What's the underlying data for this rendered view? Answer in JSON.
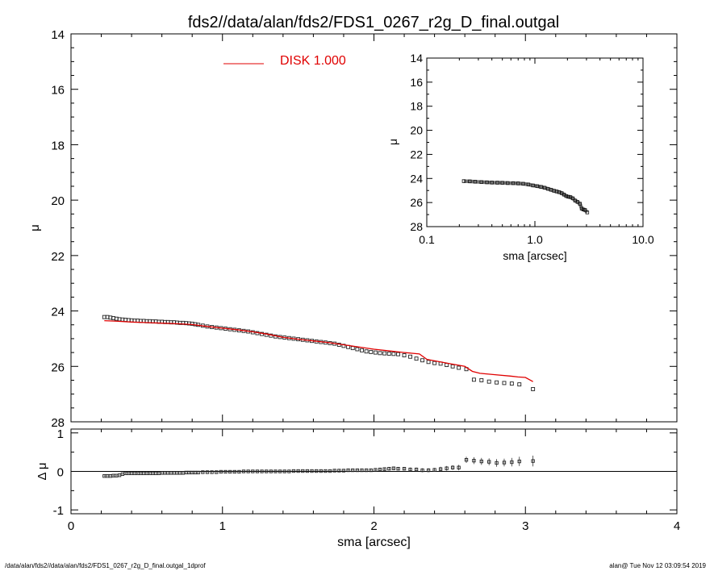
{
  "footer": {
    "left": "/data/alan/fds2//data/alan/fds2/FDS1_0267_r2g_D_final.outgal_1dprof",
    "right": "alan@  Tue Nov 12 03:09:54 2019"
  },
  "chart_data": [
    {
      "type": "scatter",
      "title": "fds2//data/alan/fds2/FDS1_0267_r2g_D_final.outgal",
      "xlabel": "",
      "ylabel": "μ",
      "xlim": [
        0,
        4
      ],
      "ylim": [
        28,
        14
      ],
      "yticks": [
        "14",
        "16",
        "18",
        "20",
        "22",
        "24",
        "26",
        "28"
      ],
      "legend": {
        "label": "DISK  1.000",
        "color": "#e00000",
        "placement": "top-center"
      },
      "series": [
        {
          "kind": "points",
          "color": "#000000",
          "x": [
            0.22,
            0.24,
            0.26,
            0.28,
            0.3,
            0.32,
            0.34,
            0.36,
            0.38,
            0.4,
            0.42,
            0.44,
            0.46,
            0.48,
            0.5,
            0.52,
            0.54,
            0.56,
            0.58,
            0.6,
            0.62,
            0.64,
            0.66,
            0.68,
            0.7,
            0.72,
            0.74,
            0.76,
            0.78,
            0.8,
            0.82,
            0.84,
            0.87,
            0.9,
            0.93,
            0.96,
            0.99,
            1.02,
            1.05,
            1.08,
            1.11,
            1.14,
            1.17,
            1.2,
            1.23,
            1.26,
            1.29,
            1.32,
            1.35,
            1.38,
            1.41,
            1.44,
            1.47,
            1.5,
            1.53,
            1.56,
            1.59,
            1.62,
            1.65,
            1.68,
            1.71,
            1.74,
            1.77,
            1.8,
            1.83,
            1.86,
            1.89,
            1.92,
            1.95,
            1.98,
            2.01,
            2.04,
            2.07,
            2.1,
            2.13,
            2.16,
            2.2,
            2.24,
            2.28,
            2.32,
            2.36,
            2.4,
            2.44,
            2.48,
            2.52,
            2.56,
            2.61,
            2.66,
            2.71,
            2.76,
            2.81,
            2.86,
            2.91,
            2.96,
            3.05
          ],
          "y": [
            24.22,
            24.22,
            24.24,
            24.26,
            24.28,
            24.3,
            24.31,
            24.32,
            24.33,
            24.34,
            24.35,
            24.35,
            24.36,
            24.36,
            24.37,
            24.37,
            24.38,
            24.38,
            24.39,
            24.39,
            24.4,
            24.4,
            24.41,
            24.41,
            24.42,
            24.43,
            24.43,
            24.44,
            24.45,
            24.46,
            24.48,
            24.5,
            24.53,
            24.56,
            24.58,
            24.6,
            24.62,
            24.64,
            24.66,
            24.68,
            24.7,
            24.72,
            24.74,
            24.77,
            24.8,
            24.83,
            24.86,
            24.89,
            24.92,
            24.94,
            24.96,
            24.98,
            25.0,
            25.02,
            25.04,
            25.06,
            25.08,
            25.1,
            25.12,
            25.14,
            25.16,
            25.18,
            25.22,
            25.26,
            25.3,
            25.34,
            25.38,
            25.42,
            25.46,
            25.48,
            25.5,
            25.52,
            25.53,
            25.54,
            25.55,
            25.56,
            25.6,
            25.65,
            25.72,
            25.78,
            25.84,
            25.88,
            25.9,
            25.95,
            26.0,
            26.05,
            26.1,
            26.48,
            26.5,
            26.55,
            26.58,
            26.6,
            26.62,
            26.65,
            26.82
          ]
        },
        {
          "kind": "line",
          "name": "DISK  1.000",
          "color": "#e00000",
          "x": [
            0.22,
            0.3,
            0.4,
            0.5,
            0.6,
            0.7,
            0.8,
            0.9,
            1.0,
            1.1,
            1.2,
            1.3,
            1.4,
            1.5,
            1.6,
            1.7,
            1.8,
            1.9,
            2.0,
            2.1,
            2.2,
            2.3,
            2.35,
            2.4,
            2.5,
            2.6,
            2.65,
            2.7,
            2.8,
            2.9,
            2.95,
            3.0,
            3.05
          ],
          "y": [
            24.35,
            24.37,
            24.4,
            24.42,
            24.44,
            24.46,
            24.49,
            24.56,
            24.62,
            24.68,
            24.75,
            24.84,
            24.95,
            25.02,
            25.08,
            25.14,
            25.22,
            25.3,
            25.38,
            25.44,
            25.5,
            25.55,
            25.75,
            25.8,
            25.9,
            26.0,
            26.18,
            26.25,
            26.3,
            26.35,
            26.38,
            26.4,
            26.55
          ]
        }
      ]
    },
    {
      "type": "scatter",
      "title": "",
      "xlabel": "sma [arcsec]",
      "ylabel": "Δ μ",
      "xlim": [
        0,
        4
      ],
      "ylim": [
        -1.1,
        1.1
      ],
      "xticks": [
        "0",
        "1",
        "2",
        "3",
        "4"
      ],
      "yticks": [
        "1",
        "0",
        "-1"
      ],
      "series": [
        {
          "kind": "points_with_errorbars",
          "color": "#000000",
          "x": [
            0.22,
            0.24,
            0.26,
            0.28,
            0.3,
            0.32,
            0.34,
            0.36,
            0.38,
            0.4,
            0.42,
            0.44,
            0.46,
            0.48,
            0.5,
            0.52,
            0.54,
            0.56,
            0.58,
            0.6,
            0.62,
            0.64,
            0.66,
            0.68,
            0.7,
            0.72,
            0.74,
            0.76,
            0.78,
            0.8,
            0.82,
            0.84,
            0.87,
            0.9,
            0.93,
            0.96,
            0.99,
            1.02,
            1.05,
            1.08,
            1.11,
            1.14,
            1.17,
            1.2,
            1.23,
            1.26,
            1.29,
            1.32,
            1.35,
            1.38,
            1.41,
            1.44,
            1.47,
            1.5,
            1.53,
            1.56,
            1.59,
            1.62,
            1.65,
            1.68,
            1.71,
            1.74,
            1.77,
            1.8,
            1.83,
            1.86,
            1.89,
            1.92,
            1.95,
            1.98,
            2.01,
            2.04,
            2.07,
            2.1,
            2.13,
            2.16,
            2.2,
            2.24,
            2.28,
            2.32,
            2.36,
            2.4,
            2.44,
            2.48,
            2.52,
            2.56,
            2.61,
            2.66,
            2.71,
            2.76,
            2.81,
            2.86,
            2.91,
            2.96,
            3.05
          ],
          "y": [
            -0.12,
            -0.12,
            -0.12,
            -0.11,
            -0.11,
            -0.1,
            -0.07,
            -0.05,
            -0.05,
            -0.05,
            -0.05,
            -0.05,
            -0.05,
            -0.05,
            -0.05,
            -0.05,
            -0.05,
            -0.05,
            -0.05,
            -0.04,
            -0.04,
            -0.04,
            -0.04,
            -0.04,
            -0.04,
            -0.04,
            -0.04,
            -0.03,
            -0.03,
            -0.03,
            -0.03,
            -0.03,
            -0.02,
            -0.02,
            -0.02,
            -0.02,
            -0.01,
            -0.01,
            -0.01,
            -0.01,
            -0.01,
            0.0,
            0.0,
            0.0,
            0.0,
            0.0,
            0.0,
            0.0,
            0.0,
            0.0,
            0.0,
            0.0,
            0.01,
            0.01,
            0.01,
            0.01,
            0.01,
            0.01,
            0.01,
            0.01,
            0.01,
            0.02,
            0.02,
            0.02,
            0.03,
            0.03,
            0.03,
            0.03,
            0.03,
            0.03,
            0.04,
            0.05,
            0.06,
            0.07,
            0.08,
            0.07,
            0.07,
            0.05,
            0.05,
            0.03,
            0.03,
            0.04,
            0.06,
            0.08,
            0.1,
            0.1,
            0.3,
            0.28,
            0.26,
            0.25,
            0.22,
            0.23,
            0.24,
            0.26,
            0.27
          ],
          "err": [
            0.02,
            0.02,
            0.02,
            0.02,
            0.02,
            0.02,
            0.02,
            0.02,
            0.02,
            0.02,
            0.02,
            0.02,
            0.02,
            0.02,
            0.02,
            0.02,
            0.02,
            0.02,
            0.02,
            0.02,
            0.02,
            0.02,
            0.02,
            0.02,
            0.02,
            0.02,
            0.02,
            0.02,
            0.02,
            0.02,
            0.02,
            0.02,
            0.02,
            0.02,
            0.02,
            0.02,
            0.02,
            0.02,
            0.02,
            0.02,
            0.02,
            0.02,
            0.02,
            0.02,
            0.02,
            0.02,
            0.02,
            0.02,
            0.02,
            0.02,
            0.02,
            0.02,
            0.02,
            0.02,
            0.02,
            0.02,
            0.02,
            0.02,
            0.02,
            0.02,
            0.02,
            0.03,
            0.03,
            0.03,
            0.03,
            0.03,
            0.03,
            0.03,
            0.03,
            0.03,
            0.03,
            0.04,
            0.04,
            0.04,
            0.04,
            0.04,
            0.04,
            0.05,
            0.05,
            0.05,
            0.05,
            0.05,
            0.06,
            0.06,
            0.06,
            0.07,
            0.08,
            0.09,
            0.09,
            0.09,
            0.1,
            0.1,
            0.11,
            0.12,
            0.14
          ]
        }
      ],
      "reference_line": {
        "y": 0,
        "color": "#000000"
      }
    },
    {
      "type": "scatter",
      "title": "",
      "xlabel": "sma [arcsec]",
      "ylabel": "μ",
      "x_scale": "log",
      "xlim": [
        0.1,
        10.0
      ],
      "ylim": [
        28,
        14
      ],
      "xticks": [
        "0.1",
        "1.0",
        "10.0"
      ],
      "yticks": [
        "14",
        "16",
        "18",
        "20",
        "22",
        "24",
        "26",
        "28"
      ],
      "series": [
        {
          "kind": "points",
          "color": "#000000",
          "x": [
            0.22,
            0.25,
            0.28,
            0.32,
            0.36,
            0.4,
            0.45,
            0.5,
            0.56,
            0.63,
            0.7,
            0.78,
            0.87,
            0.96,
            1.05,
            1.14,
            1.23,
            1.32,
            1.41,
            1.5,
            1.59,
            1.68,
            1.77,
            1.86,
            1.95,
            2.04,
            2.13,
            2.24,
            2.36,
            2.48,
            2.61,
            2.71,
            2.81,
            2.91,
            3.05
          ],
          "y": [
            24.22,
            24.24,
            24.27,
            24.3,
            24.32,
            24.34,
            24.35,
            24.36,
            24.38,
            24.39,
            24.41,
            24.44,
            24.5,
            24.58,
            24.64,
            24.7,
            24.77,
            24.86,
            24.94,
            25.02,
            25.08,
            25.14,
            25.22,
            25.34,
            25.46,
            25.52,
            25.55,
            25.65,
            25.84,
            25.95,
            26.1,
            26.5,
            26.58,
            26.62,
            26.82
          ]
        }
      ]
    }
  ]
}
